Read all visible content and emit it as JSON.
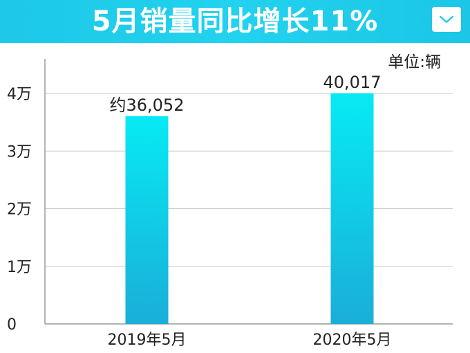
{
  "header": {
    "title": "5月销量同比增长11%"
  },
  "unit": "单位:辆",
  "colors": {
    "header_bg": "#1ec9e9",
    "bar_top": "#07eaf4",
    "bar_bottom": "#1aaed8",
    "grid": "#c8c8c8",
    "axis": "#9a9a9a",
    "text": "#222222"
  },
  "chart_data": {
    "type": "bar",
    "title": "5月销量同比增长11%",
    "categories": [
      "2019年5月",
      "2020年5月"
    ],
    "values": [
      36052,
      40017
    ],
    "data_labels": [
      "约36,052",
      "40,017"
    ],
    "ylim": [
      0,
      40000
    ],
    "yticks": [
      0,
      10000,
      20000,
      30000,
      40000
    ],
    "ytick_labels": [
      "0",
      "1万",
      "2万",
      "3万",
      "4万"
    ],
    "grid": true
  }
}
